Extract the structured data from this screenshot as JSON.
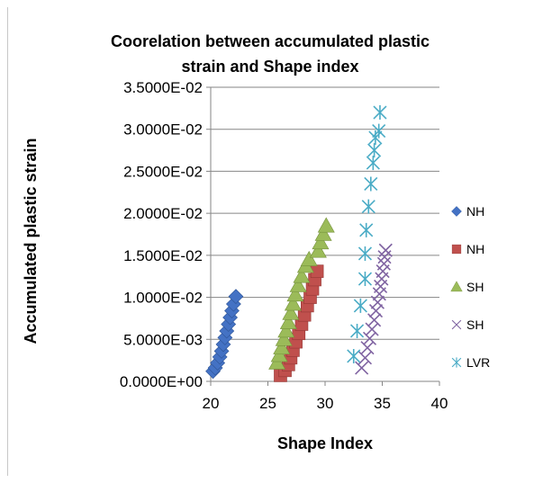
{
  "chart_data": {
    "type": "scatter",
    "title_lines": [
      "Coorelation between accumulated plastic",
      "strain and Shape index"
    ],
    "xlabel": "Shape Index",
    "ylabel": "Accumulated plastic strain",
    "xlim": [
      20,
      40
    ],
    "ylim": [
      0,
      0.035
    ],
    "x_ticks": [
      20,
      25,
      30,
      35,
      40
    ],
    "x_tick_labels": [
      "20",
      "25",
      "30",
      "35",
      "40"
    ],
    "y_ticks": [
      0,
      0.005,
      0.01,
      0.015,
      0.02,
      0.025,
      0.03,
      0.035
    ],
    "y_tick_labels": [
      "0.0000E+00",
      "5.0000E-03",
      "1.0000E-02",
      "1.5000E-02",
      "2.0000E-02",
      "2.5000E-02",
      "3.0000E-02",
      "3.5000E-02"
    ],
    "grid": "horizontal",
    "legend_position": "right",
    "series": [
      {
        "name": "NH",
        "marker": "diamond",
        "color": "#4472C4",
        "points": [
          [
            20.2,
            0.0012
          ],
          [
            20.4,
            0.0016
          ],
          [
            20.6,
            0.0022
          ],
          [
            20.8,
            0.0029
          ],
          [
            20.95,
            0.0036
          ],
          [
            21.1,
            0.0044
          ],
          [
            21.25,
            0.0052
          ],
          [
            21.4,
            0.006
          ],
          [
            21.55,
            0.0068
          ],
          [
            21.7,
            0.0076
          ],
          [
            21.85,
            0.0084
          ],
          [
            22.0,
            0.0092
          ],
          [
            22.2,
            0.0101
          ]
        ]
      },
      {
        "name": "NH",
        "marker": "square",
        "color": "#C0504D",
        "points": [
          [
            26.1,
            0.0007
          ],
          [
            26.5,
            0.0013
          ],
          [
            26.8,
            0.002
          ],
          [
            27.0,
            0.0028
          ],
          [
            27.2,
            0.0037
          ],
          [
            27.45,
            0.0047
          ],
          [
            27.7,
            0.0057
          ],
          [
            27.95,
            0.0068
          ],
          [
            28.2,
            0.0079
          ],
          [
            28.45,
            0.009
          ],
          [
            28.7,
            0.01
          ],
          [
            28.9,
            0.011
          ],
          [
            29.1,
            0.0121
          ],
          [
            29.3,
            0.0131
          ]
        ]
      },
      {
        "name": "SH",
        "marker": "triangle",
        "color": "#9BBB59",
        "points": [
          [
            25.8,
            0.0022
          ],
          [
            26.0,
            0.0031
          ],
          [
            26.2,
            0.004
          ],
          [
            26.4,
            0.005
          ],
          [
            26.6,
            0.006
          ],
          [
            26.8,
            0.007
          ],
          [
            27.0,
            0.0081
          ],
          [
            27.2,
            0.0092
          ],
          [
            27.4,
            0.0103
          ],
          [
            27.65,
            0.0114
          ],
          [
            27.95,
            0.0125
          ],
          [
            28.3,
            0.0137
          ],
          [
            28.6,
            0.0145
          ],
          [
            29.4,
            0.0155
          ],
          [
            29.6,
            0.0165
          ],
          [
            29.85,
            0.0175
          ],
          [
            30.1,
            0.0185
          ]
        ]
      },
      {
        "name": "SH",
        "marker": "x",
        "color": "#8064A2",
        "points": [
          [
            33.2,
            0.0016
          ],
          [
            33.5,
            0.0028
          ],
          [
            33.7,
            0.004
          ],
          [
            33.9,
            0.0051
          ],
          [
            34.1,
            0.0062
          ],
          [
            34.3,
            0.0073
          ],
          [
            34.45,
            0.0084
          ],
          [
            34.6,
            0.0094
          ],
          [
            34.75,
            0.0104
          ],
          [
            34.85,
            0.0113
          ],
          [
            34.95,
            0.0122
          ],
          [
            35.05,
            0.0131
          ],
          [
            35.15,
            0.014
          ],
          [
            35.2,
            0.0148
          ],
          [
            35.3,
            0.0156
          ]
        ]
      },
      {
        "name": "LVR",
        "marker": "star",
        "color": "#4BACC6",
        "points": [
          [
            32.5,
            0.003
          ],
          [
            32.8,
            0.006
          ],
          [
            33.1,
            0.009
          ],
          [
            33.5,
            0.0122
          ],
          [
            33.5,
            0.0152
          ],
          [
            33.6,
            0.018
          ],
          [
            33.8,
            0.0208
          ],
          [
            34.0,
            0.0235
          ],
          [
            34.2,
            0.026
          ],
          [
            34.3,
            0.0275
          ],
          [
            34.4,
            0.029
          ],
          [
            34.7,
            0.0298
          ],
          [
            34.8,
            0.032
          ]
        ]
      }
    ]
  }
}
